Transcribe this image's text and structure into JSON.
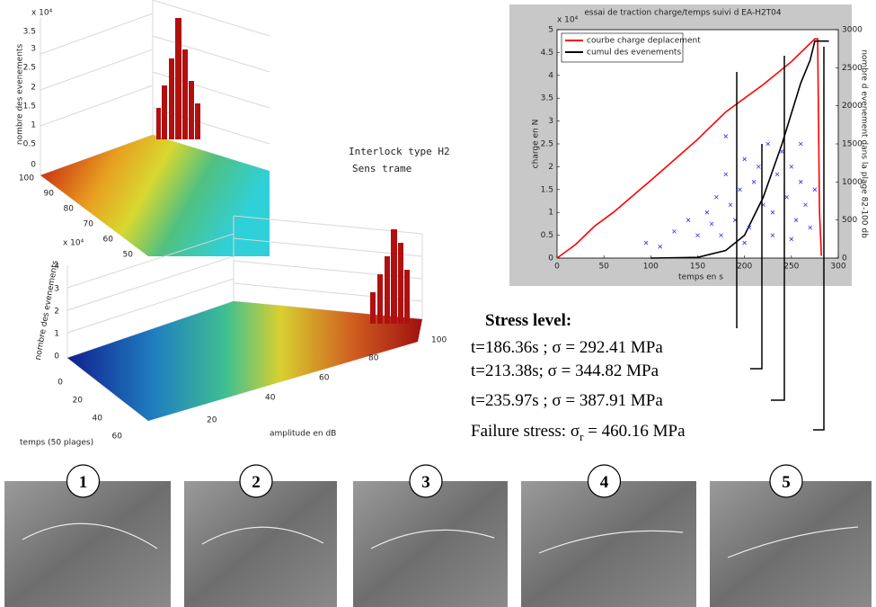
{
  "top_plot": {
    "exponent": "x 10⁴",
    "zlabel": "nombre des evenements",
    "zticks": [
      "3.5",
      "3",
      "2.5",
      "2",
      "1.5",
      "1",
      "0.5",
      "0"
    ],
    "yticks": [
      "100",
      "90",
      "80",
      "70",
      "60",
      "50"
    ]
  },
  "caption": [
    "Interlock type H2",
    "Sens trame"
  ],
  "bottom_plot": {
    "exponent": "x 10⁴",
    "zlabel": "nombre des evenements",
    "zticks": [
      "4",
      "3",
      "2",
      "1",
      "0"
    ],
    "left_ticks": [
      "0",
      "20",
      "40",
      "60"
    ],
    "right_ticks": [
      "20",
      "40",
      "60",
      "80",
      "100"
    ],
    "xlabel": "amplitude en dB",
    "ylabel": "temps (50 plages)"
  },
  "chart_data": {
    "type": "line",
    "title": "essai de traction charge/temps suivi d EA-H2T04",
    "y_exponent": "x 10⁴",
    "xlabel": "temps en s",
    "ylabel": "charge en N",
    "y2label": "nombre d evenement dans la plage 82-100 db",
    "xlim": [
      0,
      300
    ],
    "xticks": [
      0,
      50,
      100,
      150,
      200,
      250,
      300
    ],
    "ylim": [
      0,
      5
    ],
    "yticks": [
      0,
      0.5,
      1,
      1.5,
      2,
      2.5,
      3,
      3.5,
      4,
      4.5,
      5
    ],
    "y2lim": [
      0,
      3000
    ],
    "y2ticks": [
      0,
      500,
      1000,
      1500,
      2000,
      2500,
      3000
    ],
    "legend": "upper left",
    "series": [
      {
        "name": "courbe charge deplacement",
        "color": "#ff0000",
        "x": [
          0,
          20,
          40,
          60,
          100,
          150,
          180,
          220,
          250,
          275,
          278,
          280,
          282
        ],
        "values": [
          0,
          0.3,
          0.7,
          1.0,
          1.7,
          2.6,
          3.2,
          3.8,
          4.3,
          4.8,
          4.8,
          1.0,
          0.05
        ]
      },
      {
        "name": "cumul des evenements",
        "color": "#000000",
        "axis": "y2",
        "x": [
          100,
          150,
          180,
          200,
          220,
          240,
          260,
          270,
          275,
          290
        ],
        "values": [
          0,
          10,
          100,
          300,
          800,
          1500,
          2300,
          2600,
          2850,
          2850
        ]
      },
      {
        "type": "scatter",
        "color": "#3030ff",
        "axis": "y2",
        "x": [
          95,
          110,
          125,
          140,
          150,
          160,
          165,
          170,
          175,
          180,
          185,
          190,
          195,
          200,
          205,
          210,
          215,
          220,
          225,
          230,
          235,
          240,
          245,
          250,
          255,
          260,
          265,
          270,
          275,
          200,
          230,
          250,
          180,
          260
        ],
        "values": [
          200,
          150,
          350,
          500,
          300,
          600,
          450,
          800,
          300,
          1100,
          700,
          500,
          900,
          1300,
          400,
          1000,
          1200,
          700,
          1500,
          600,
          1100,
          1400,
          800,
          1200,
          500,
          1000,
          700,
          400,
          900,
          200,
          300,
          250,
          1600,
          1500
        ]
      }
    ]
  },
  "stress": {
    "heading": "Stress level:",
    "lines": [
      "t=186.36s ; σ = 292.41 MPa",
      "t=213.38s;  σ = 344.82 MPa",
      "t=235.97s ;  σ = 387.91 MPa"
    ],
    "failure": [
      "Failure stress: σ",
      "r",
      " = 460.16 MPa"
    ]
  },
  "images": [
    {
      "number": "1"
    },
    {
      "number": "2"
    },
    {
      "number": "3"
    },
    {
      "number": "4"
    },
    {
      "number": "5"
    }
  ]
}
